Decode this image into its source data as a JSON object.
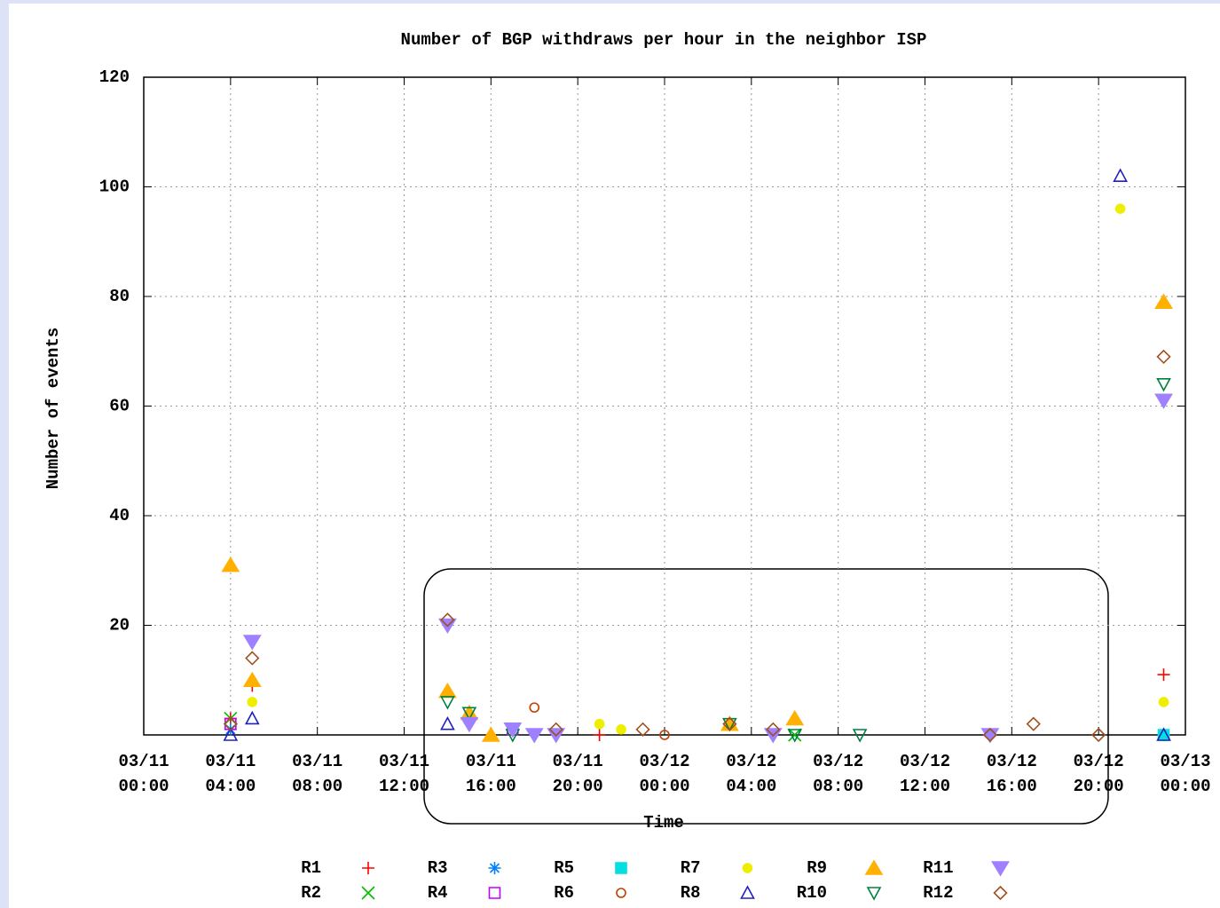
{
  "chart_data": {
    "type": "scatter",
    "title": "Number of BGP withdraws per hour in the neighbor ISP",
    "x_label": "Time",
    "y_label": "Number of events",
    "xlim": [
      0,
      48
    ],
    "ylim": [
      0,
      120
    ],
    "xticks": [
      {
        "value": 0,
        "label": "03/11\n00:00"
      },
      {
        "value": 4,
        "label": "03/11\n04:00"
      },
      {
        "value": 8,
        "label": "03/11\n08:00"
      },
      {
        "value": 12,
        "label": "03/11\n12:00"
      },
      {
        "value": 16,
        "label": "03/11\n16:00"
      },
      {
        "value": 20,
        "label": "03/11\n20:00"
      },
      {
        "value": 24,
        "label": "03/12\n00:00"
      },
      {
        "value": 28,
        "label": "03/12\n04:00"
      },
      {
        "value": 32,
        "label": "03/12\n08:00"
      },
      {
        "value": 36,
        "label": "03/12\n12:00"
      },
      {
        "value": 40,
        "label": "03/12\n16:00"
      },
      {
        "value": 44,
        "label": "03/12\n20:00"
      },
      {
        "value": 48,
        "label": "03/13\n00:00"
      }
    ],
    "yticks": [
      20,
      40,
      60,
      80,
      100,
      120
    ],
    "grid": true,
    "series": [
      {
        "name": "R1",
        "color": "#ff0000",
        "marker": "plus",
        "x": [
          4,
          5,
          21,
          47
        ],
        "values": [
          3,
          9,
          0,
          11
        ]
      },
      {
        "name": "R2",
        "color": "#00c000",
        "marker": "cross",
        "x": [
          4,
          30
        ],
        "values": [
          3,
          0
        ]
      },
      {
        "name": "R3",
        "color": "#0080ff",
        "marker": "star",
        "x": [
          4,
          47
        ],
        "values": [
          1,
          0
        ]
      },
      {
        "name": "R4",
        "color": "#c000ff",
        "marker": "box",
        "x": [
          4,
          17
        ],
        "values": [
          2,
          1
        ]
      },
      {
        "name": "R5",
        "color": "#00e0e0",
        "marker": "fbox",
        "x": [
          47
        ],
        "values": [
          0
        ]
      },
      {
        "name": "R6",
        "color": "#c04000",
        "marker": "circle",
        "x": [
          18,
          24
        ],
        "values": [
          5,
          0
        ]
      },
      {
        "name": "R7",
        "color": "#eeee00",
        "marker": "fcircle",
        "x": [
          5,
          21,
          22,
          45,
          47
        ],
        "values": [
          6,
          2,
          1,
          96,
          6
        ]
      },
      {
        "name": "R8",
        "color": "#2020c0",
        "marker": "triangle",
        "x": [
          4,
          5,
          14,
          45,
          47
        ],
        "values": [
          0,
          3,
          2,
          102,
          0
        ]
      },
      {
        "name": "R9",
        "color": "#ffb000",
        "marker": "ftriangle",
        "x": [
          4,
          5,
          14,
          15,
          16,
          27,
          30,
          47
        ],
        "values": [
          31,
          10,
          8,
          4,
          0,
          2,
          3,
          79
        ]
      },
      {
        "name": "R10",
        "color": "#008040",
        "marker": "itriangle",
        "x": [
          14,
          15,
          17,
          27,
          30,
          33,
          47
        ],
        "values": [
          6,
          4,
          0,
          2,
          0,
          0,
          64
        ]
      },
      {
        "name": "R11",
        "color": "#9f80ff",
        "marker": "fitriangle",
        "x": [
          5,
          14,
          15,
          17,
          18,
          19,
          29,
          39,
          47
        ],
        "values": [
          17,
          20,
          2,
          1,
          0,
          0,
          0,
          0,
          61
        ]
      },
      {
        "name": "R12",
        "color": "#a05020",
        "marker": "diamond",
        "x": [
          4,
          5,
          14,
          19,
          23,
          27,
          29,
          39,
          41,
          44,
          47
        ],
        "values": [
          2,
          14,
          21,
          1,
          1,
          2,
          1,
          0,
          2,
          0,
          69
        ]
      }
    ]
  }
}
